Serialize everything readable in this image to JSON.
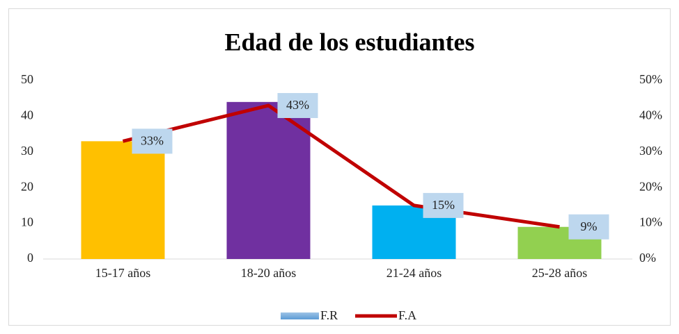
{
  "chart_data": {
    "type": "combo",
    "title": "Edad de los estudiantes",
    "categories": [
      "15-17 años",
      "18-20 años",
      "21-24 años",
      "25-28 años"
    ],
    "series": [
      {
        "name": "F.R",
        "type": "bar",
        "color": "#5b9bd5",
        "colors": [
          "#ffc000",
          "#7030a0",
          "#00b0f0",
          "#92d050"
        ],
        "values": [
          33,
          44,
          15,
          9
        ]
      },
      {
        "name": "F.A",
        "type": "line",
        "axis": "y2",
        "color": "#c00000",
        "values": [
          33,
          43,
          15,
          9
        ],
        "value_labels": [
          "33%",
          "43%",
          "15%",
          "9%"
        ]
      }
    ],
    "ylim": [
      0,
      50
    ],
    "yticks": [
      0,
      10,
      20,
      30,
      40,
      50
    ],
    "y2lim": [
      0,
      50
    ],
    "y2ticks": [
      {
        "value": 0,
        "label": "0%"
      },
      {
        "value": 10,
        "label": "10%"
      },
      {
        "value": 20,
        "label": "20%"
      },
      {
        "value": 30,
        "label": "30%"
      },
      {
        "value": 40,
        "label": "40%"
      },
      {
        "value": 50,
        "label": "50%"
      }
    ],
    "grid": false,
    "legend": "bottom"
  }
}
